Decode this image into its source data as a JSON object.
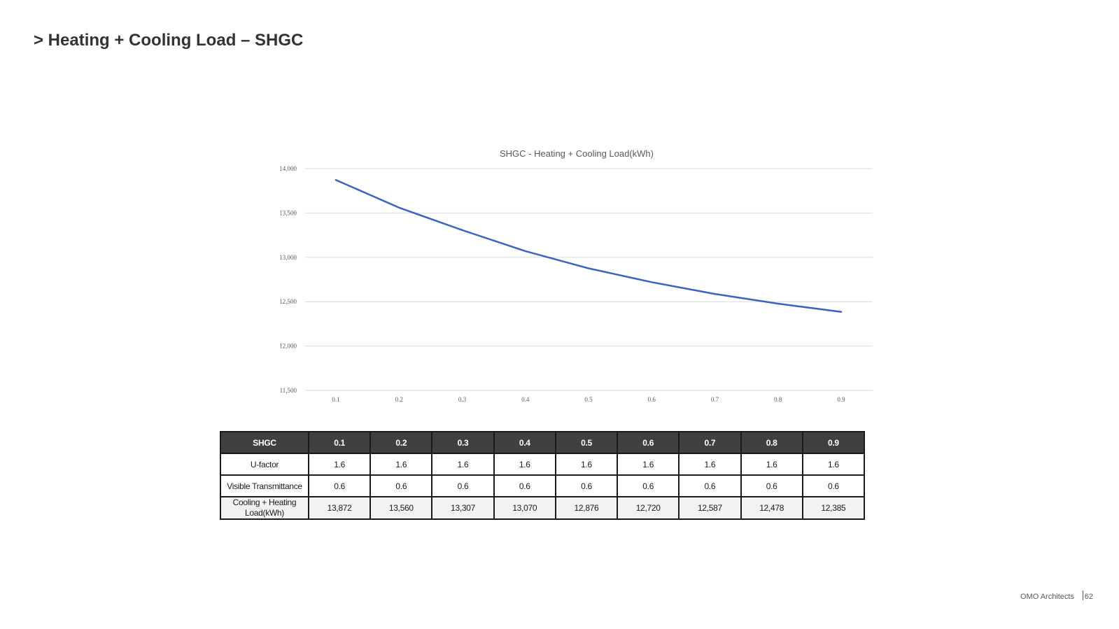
{
  "page": {
    "title": "> Heating + Cooling Load – SHGC"
  },
  "chart_data": {
    "type": "line",
    "title": "SHGC - Heating + Cooling Load(kWh)",
    "xlabel": "",
    "ylabel": "",
    "categories": [
      "0.1",
      "0.2",
      "0.3",
      "0.4",
      "0.5",
      "0.6",
      "0.7",
      "0.8",
      "0.9"
    ],
    "series": [
      {
        "values": [
          13872,
          13560,
          13307,
          13070,
          12876,
          12720,
          12587,
          12478,
          12385
        ],
        "color": "#3a62c2"
      }
    ],
    "ylim": [
      11500,
      14000
    ],
    "yticks": [
      14000,
      13500,
      13000,
      12500,
      12000,
      11500
    ],
    "ytick_labels": [
      "14,000",
      "13,500",
      "13,000",
      "12,500",
      "12,000",
      "11,500"
    ],
    "grid": true,
    "legend": "none"
  },
  "table": {
    "header_label": "SHGC",
    "columns": [
      "0.1",
      "0.2",
      "0.3",
      "0.4",
      "0.5",
      "0.6",
      "0.7",
      "0.8",
      "0.9"
    ],
    "rows": [
      {
        "label": "U-factor",
        "values": [
          "1.6",
          "1.6",
          "1.6",
          "1.6",
          "1.6",
          "1.6",
          "1.6",
          "1.6",
          "1.6"
        ]
      },
      {
        "label": "Visible Transmittance",
        "values": [
          "0.6",
          "0.6",
          "0.6",
          "0.6",
          "0.6",
          "0.6",
          "0.6",
          "0.6",
          "0.6"
        ]
      },
      {
        "label": "Cooling + Heating Load(kWh)",
        "values": [
          "13,872",
          "13,560",
          "13,307",
          "13,070",
          "12,876",
          "12,720",
          "12,587",
          "12,478",
          "12,385"
        ]
      }
    ]
  },
  "footer": {
    "company": "OMO Architects",
    "page_number": "62"
  }
}
